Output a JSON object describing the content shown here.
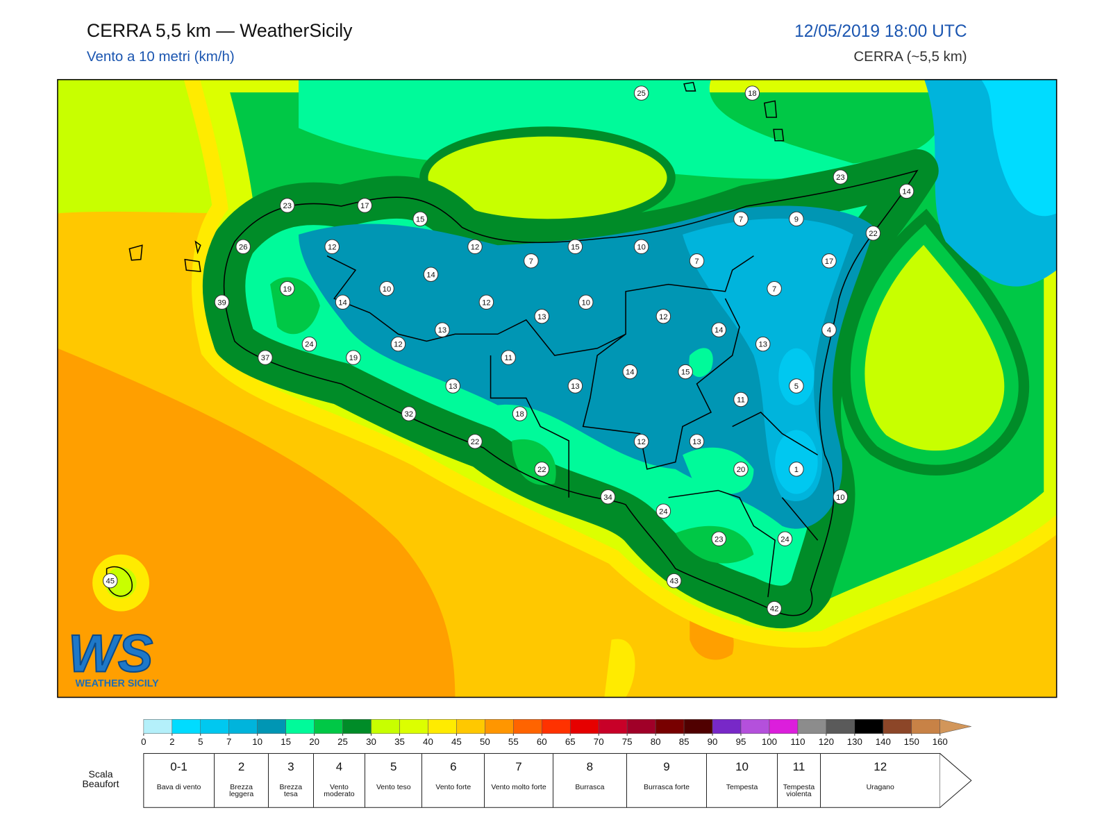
{
  "header": {
    "title": "CERRA 5,5 km — WeatherSicily",
    "subtitle": "Vento a 10 metri (km/h)",
    "datetime": "12/05/2019 18:00 UTC",
    "model": "CERRA (~5,5 km)"
  },
  "logo": {
    "mark": "WS",
    "text": "WEATHER SICILY"
  },
  "stations": [
    25,
    18,
    23,
    17,
    15,
    23,
    14,
    26,
    12,
    12,
    15,
    10,
    7,
    9,
    22,
    7,
    7,
    17,
    19,
    14,
    10,
    7,
    39,
    14,
    12,
    13,
    10,
    12,
    14,
    4,
    13,
    13,
    24,
    12,
    37,
    19,
    11,
    14,
    15,
    5,
    13,
    13,
    11,
    18,
    32,
    22,
    12,
    13,
    22,
    20,
    1,
    34,
    10,
    24,
    23,
    24,
    45,
    43,
    42
  ],
  "colorbar": {
    "ticks": [
      0,
      2,
      5,
      7,
      10,
      15,
      20,
      25,
      30,
      35,
      40,
      45,
      50,
      55,
      60,
      65,
      70,
      75,
      80,
      85,
      90,
      95,
      100,
      110,
      120,
      130,
      140,
      150,
      160
    ],
    "colors": [
      "#b4f0fa",
      "#00dcff",
      "#00c8f0",
      "#00b4dc",
      "#0096b4",
      "#00fa9a",
      "#00c846",
      "#008c28",
      "#c8ff00",
      "#dcff00",
      "#ffeb00",
      "#ffc800",
      "#ff9600",
      "#ff6400",
      "#ff3200",
      "#e60000",
      "#c80028",
      "#a00028",
      "#780000",
      "#500000",
      "#7828c8",
      "#b450dc",
      "#dc1edc",
      "#8c8c8c",
      "#5a5a5a",
      "#000000",
      "#8c4628",
      "#c88246",
      "#d2965a"
    ]
  },
  "beaufort": {
    "label": "Scala Beaufort",
    "levels": [
      {
        "number": "0-1",
        "description": "Bava di vento"
      },
      {
        "number": "2",
        "description": "Brezza leggera"
      },
      {
        "number": "3",
        "description": "Brezza tesa"
      },
      {
        "number": "4",
        "description": "Vento moderato"
      },
      {
        "number": "5",
        "description": "Vento teso"
      },
      {
        "number": "6",
        "description": "Vento forte"
      },
      {
        "number": "7",
        "description": "Vento molto forte"
      },
      {
        "number": "8",
        "description": "Burrasca"
      },
      {
        "number": "9",
        "description": "Burrasca forte"
      },
      {
        "number": "10",
        "description": "Tempesta"
      },
      {
        "number": "11",
        "description": "Tempesta violenta"
      },
      {
        "number": "12",
        "description": "Uragano"
      }
    ]
  }
}
